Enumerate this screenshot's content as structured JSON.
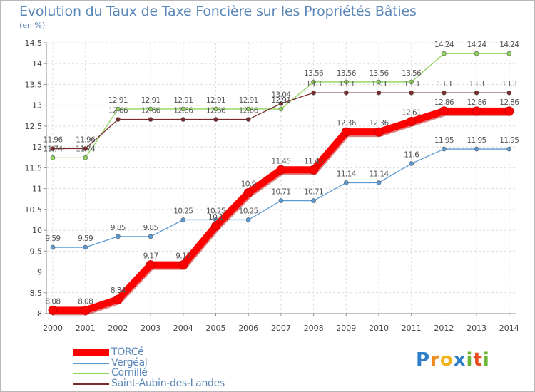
{
  "title": "Evolution du Taux de Taxe Foncière sur les Propriétés Bâties",
  "subtitle": "(en %)",
  "logo_text": "Proxiti",
  "logo_letters": [
    {
      "ch": "P",
      "color": "#2f7fc8"
    },
    {
      "ch": "r",
      "color": "#f08a1c"
    },
    {
      "ch": "o",
      "color": "#f0b21c"
    },
    {
      "ch": "x",
      "color": "#2f7fc8"
    },
    {
      "ch": "i",
      "color": "#6ab534"
    },
    {
      "ch": "t",
      "color": "#e84b1c"
    },
    {
      "ch": "i",
      "color": "#6ab534"
    }
  ],
  "chart_data": {
    "type": "line",
    "title": "Evolution du Taux de Taxe Foncière sur les Propriétés Bâties",
    "ylabel": "(en %)",
    "xlabel": "",
    "ylim": [
      8,
      14.5
    ],
    "grid": true,
    "x": [
      "2000",
      "2001",
      "2002",
      "2003",
      "2004",
      "2005",
      "2006",
      "2007",
      "2008",
      "2009",
      "2010",
      "2011",
      "2012",
      "2013",
      "2014"
    ],
    "y_ticks": [
      "8",
      "8.5",
      "9",
      "9.5",
      "10",
      "10.5",
      "11",
      "11.5",
      "12",
      "12.5",
      "13",
      "13.5",
      "14",
      "14.5"
    ],
    "legend_position": "bottom-left",
    "series": [
      {
        "name": "TORCé",
        "color": "#ff0000",
        "style": "thick",
        "values": [
          8.08,
          8.08,
          8.34,
          9.17,
          9.17,
          10.1,
          10.9,
          11.45,
          11.45,
          12.36,
          12.36,
          12.61,
          12.86,
          12.86,
          12.86
        ],
        "labels": [
          "8.08",
          "8.08",
          "8.34",
          "9.17",
          "9.17",
          "10.1",
          "10.9",
          "11.45",
          "11.45",
          "12.36",
          "12.36",
          "12.61",
          "12.86",
          "12.86",
          "12.86"
        ]
      },
      {
        "name": "Vergéal",
        "color": "#5b9bd5",
        "style": "thin",
        "values": [
          9.59,
          9.59,
          9.85,
          9.85,
          10.25,
          10.25,
          10.25,
          10.71,
          10.71,
          11.14,
          11.14,
          11.6,
          11.95,
          11.95,
          11.95
        ],
        "labels": [
          "9.59",
          "9.59",
          "9.85",
          "9.85",
          "10.25",
          "10.25",
          "10.25",
          "10.71",
          "10.71",
          "11.14",
          "11.14",
          "11.6",
          "11.95",
          "11.95",
          "11.95"
        ]
      },
      {
        "name": "Cornillé",
        "color": "#8ed35a",
        "style": "thin",
        "values": [
          11.74,
          11.74,
          12.91,
          12.91,
          12.91,
          12.91,
          12.91,
          12.91,
          13.56,
          13.56,
          13.56,
          13.56,
          14.24,
          14.24,
          14.24
        ],
        "labels": [
          "11.74",
          "11.74",
          "12.91",
          "12.91",
          "12.91",
          "12.91",
          "12.91",
          "12.91",
          "13.56",
          "13.56",
          "13.56",
          "13.56",
          "14.24",
          "14.24",
          "14.24"
        ]
      },
      {
        "name": "Saint-Aubin-des-Landes",
        "color": "#7a2b2b",
        "style": "thin",
        "values": [
          11.96,
          11.96,
          12.66,
          12.66,
          12.66,
          12.66,
          12.66,
          13.04,
          13.3,
          13.3,
          13.3,
          13.3,
          13.3,
          13.3,
          13.3
        ],
        "labels": [
          "11.96",
          "11.96",
          "12.66",
          "12.66",
          "12.66",
          "12.66",
          "12.66",
          "13.04",
          "13.3",
          "13.3",
          "13.3",
          "13.3",
          "13.3",
          "13.3",
          "13.3"
        ]
      }
    ]
  }
}
